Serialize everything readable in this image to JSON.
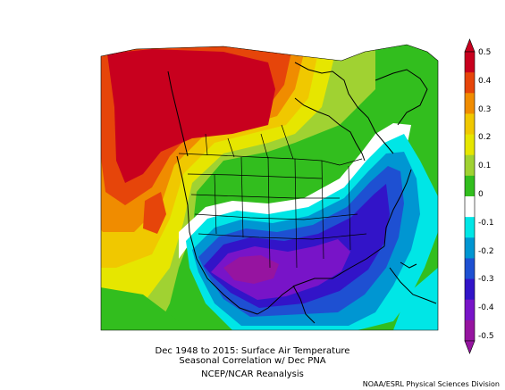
{
  "caption": {
    "line1": "Dec 1948 to 2015: Surface Air Temperature",
    "line2": "Seasonal Correlation w/ Dec PNA",
    "line3": "NCEP/NCAR Reanalysis"
  },
  "credit": "NOAA/ESRL Physical Sciences Division",
  "colorbar": {
    "labels": [
      "0.5",
      "0.4",
      "0.3",
      "0.2",
      "0.1",
      "0",
      "-0.1",
      "-0.2",
      "-0.3",
      "-0.4",
      "-0.5"
    ],
    "colors": [
      "#c8001e",
      "#e6450a",
      "#f08c00",
      "#f0c800",
      "#e6e600",
      "#a0d232",
      "#32be1e",
      "#ffffff",
      "#00e6e6",
      "#0096d2",
      "#1e50d2",
      "#3214c8",
      "#7814c8",
      "#9614a0"
    ]
  },
  "icons": [
    "colorbar-up-arrow-icon",
    "colorbar-down-arrow-icon"
  ]
}
